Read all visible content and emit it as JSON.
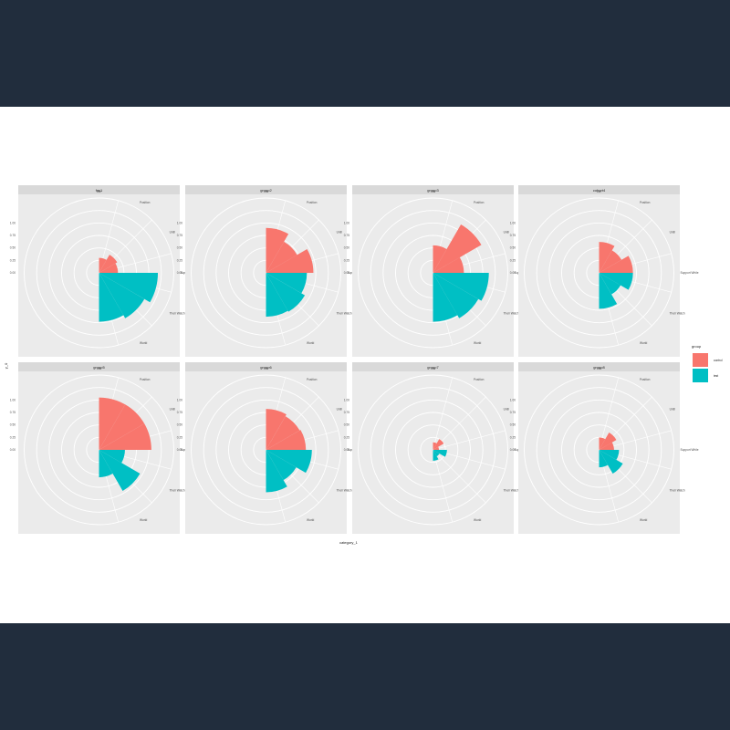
{
  "chart_data": {
    "type": "bar",
    "coord": "polar",
    "xlabel": "category_1",
    "ylabel": "y_0",
    "ylim": [
      0,
      1.5
    ],
    "y_ticks": [
      "0.00",
      "0.25",
      "0.50",
      "0.75",
      "1.00"
    ],
    "categories": [
      "Life",
      "Position",
      "Until",
      "Support While",
      "Their Watch",
      "World"
    ],
    "legend": {
      "title": "group",
      "position": "right",
      "entries": [
        "control",
        "test"
      ]
    },
    "colors": {
      "control": "#f8766d",
      "test": "#00bfc4"
    },
    "facets": [
      {
        "label": "fac1",
        "series": [
          {
            "name": "control",
            "values": [
              0.3,
              0.42,
              0.38,
              0.0,
              0.0,
              0.0
            ]
          },
          {
            "name": "test",
            "values": [
              0.0,
              0.0,
              0.0,
              1.18,
              1.05,
              0.98
            ]
          }
        ]
      },
      {
        "label": "group2",
        "series": [
          {
            "name": "control",
            "values": [
              0.9,
              0.72,
              0.95,
              0.0,
              0.0,
              0.0
            ]
          },
          {
            "name": "test",
            "values": [
              0.0,
              0.0,
              0.0,
              0.82,
              0.9,
              0.88
            ]
          }
        ]
      },
      {
        "label": "group3",
        "series": [
          {
            "name": "control",
            "values": [
              0.55,
              1.12,
              0.62,
              0.0,
              0.0,
              0.0
            ]
          },
          {
            "name": "test",
            "values": [
              0.0,
              0.0,
              0.0,
              1.12,
              1.05,
              0.98
            ]
          }
        ]
      },
      {
        "label": "cohort4",
        "series": [
          {
            "name": "control",
            "values": [
              0.62,
              0.52,
              0.68,
              0.0,
              0.0,
              0.0
            ]
          },
          {
            "name": "test",
            "values": [
              0.0,
              0.0,
              0.0,
              0.68,
              0.5,
              0.72
            ]
          }
        ]
      },
      {
        "label": "group5",
        "series": [
          {
            "name": "control",
            "values": [
              1.05,
              1.05,
              1.05,
              0.0,
              0.0,
              0.0
            ]
          },
          {
            "name": "test",
            "values": [
              0.0,
              0.0,
              0.0,
              0.52,
              0.95,
              0.55
            ]
          }
        ]
      },
      {
        "label": "group6",
        "series": [
          {
            "name": "control",
            "values": [
              0.82,
              0.78,
              0.8,
              0.0,
              0.0,
              0.0
            ]
          },
          {
            "name": "test",
            "values": [
              0.0,
              0.0,
              0.0,
              0.92,
              0.7,
              0.85
            ]
          }
        ]
      },
      {
        "label": "group7",
        "series": [
          {
            "name": "control",
            "values": [
              0.15,
              0.25,
              0.12,
              0.0,
              0.0,
              0.0
            ]
          },
          {
            "name": "test",
            "values": [
              0.0,
              0.0,
              0.0,
              0.28,
              0.15,
              0.22
            ]
          }
        ]
      },
      {
        "label": "group8",
        "series": [
          {
            "name": "control",
            "values": [
              0.25,
              0.4,
              0.3,
              0.0,
              0.0,
              0.0
            ]
          },
          {
            "name": "test",
            "values": [
              0.0,
              0.0,
              0.0,
              0.4,
              0.55,
              0.35
            ]
          }
        ]
      }
    ]
  }
}
